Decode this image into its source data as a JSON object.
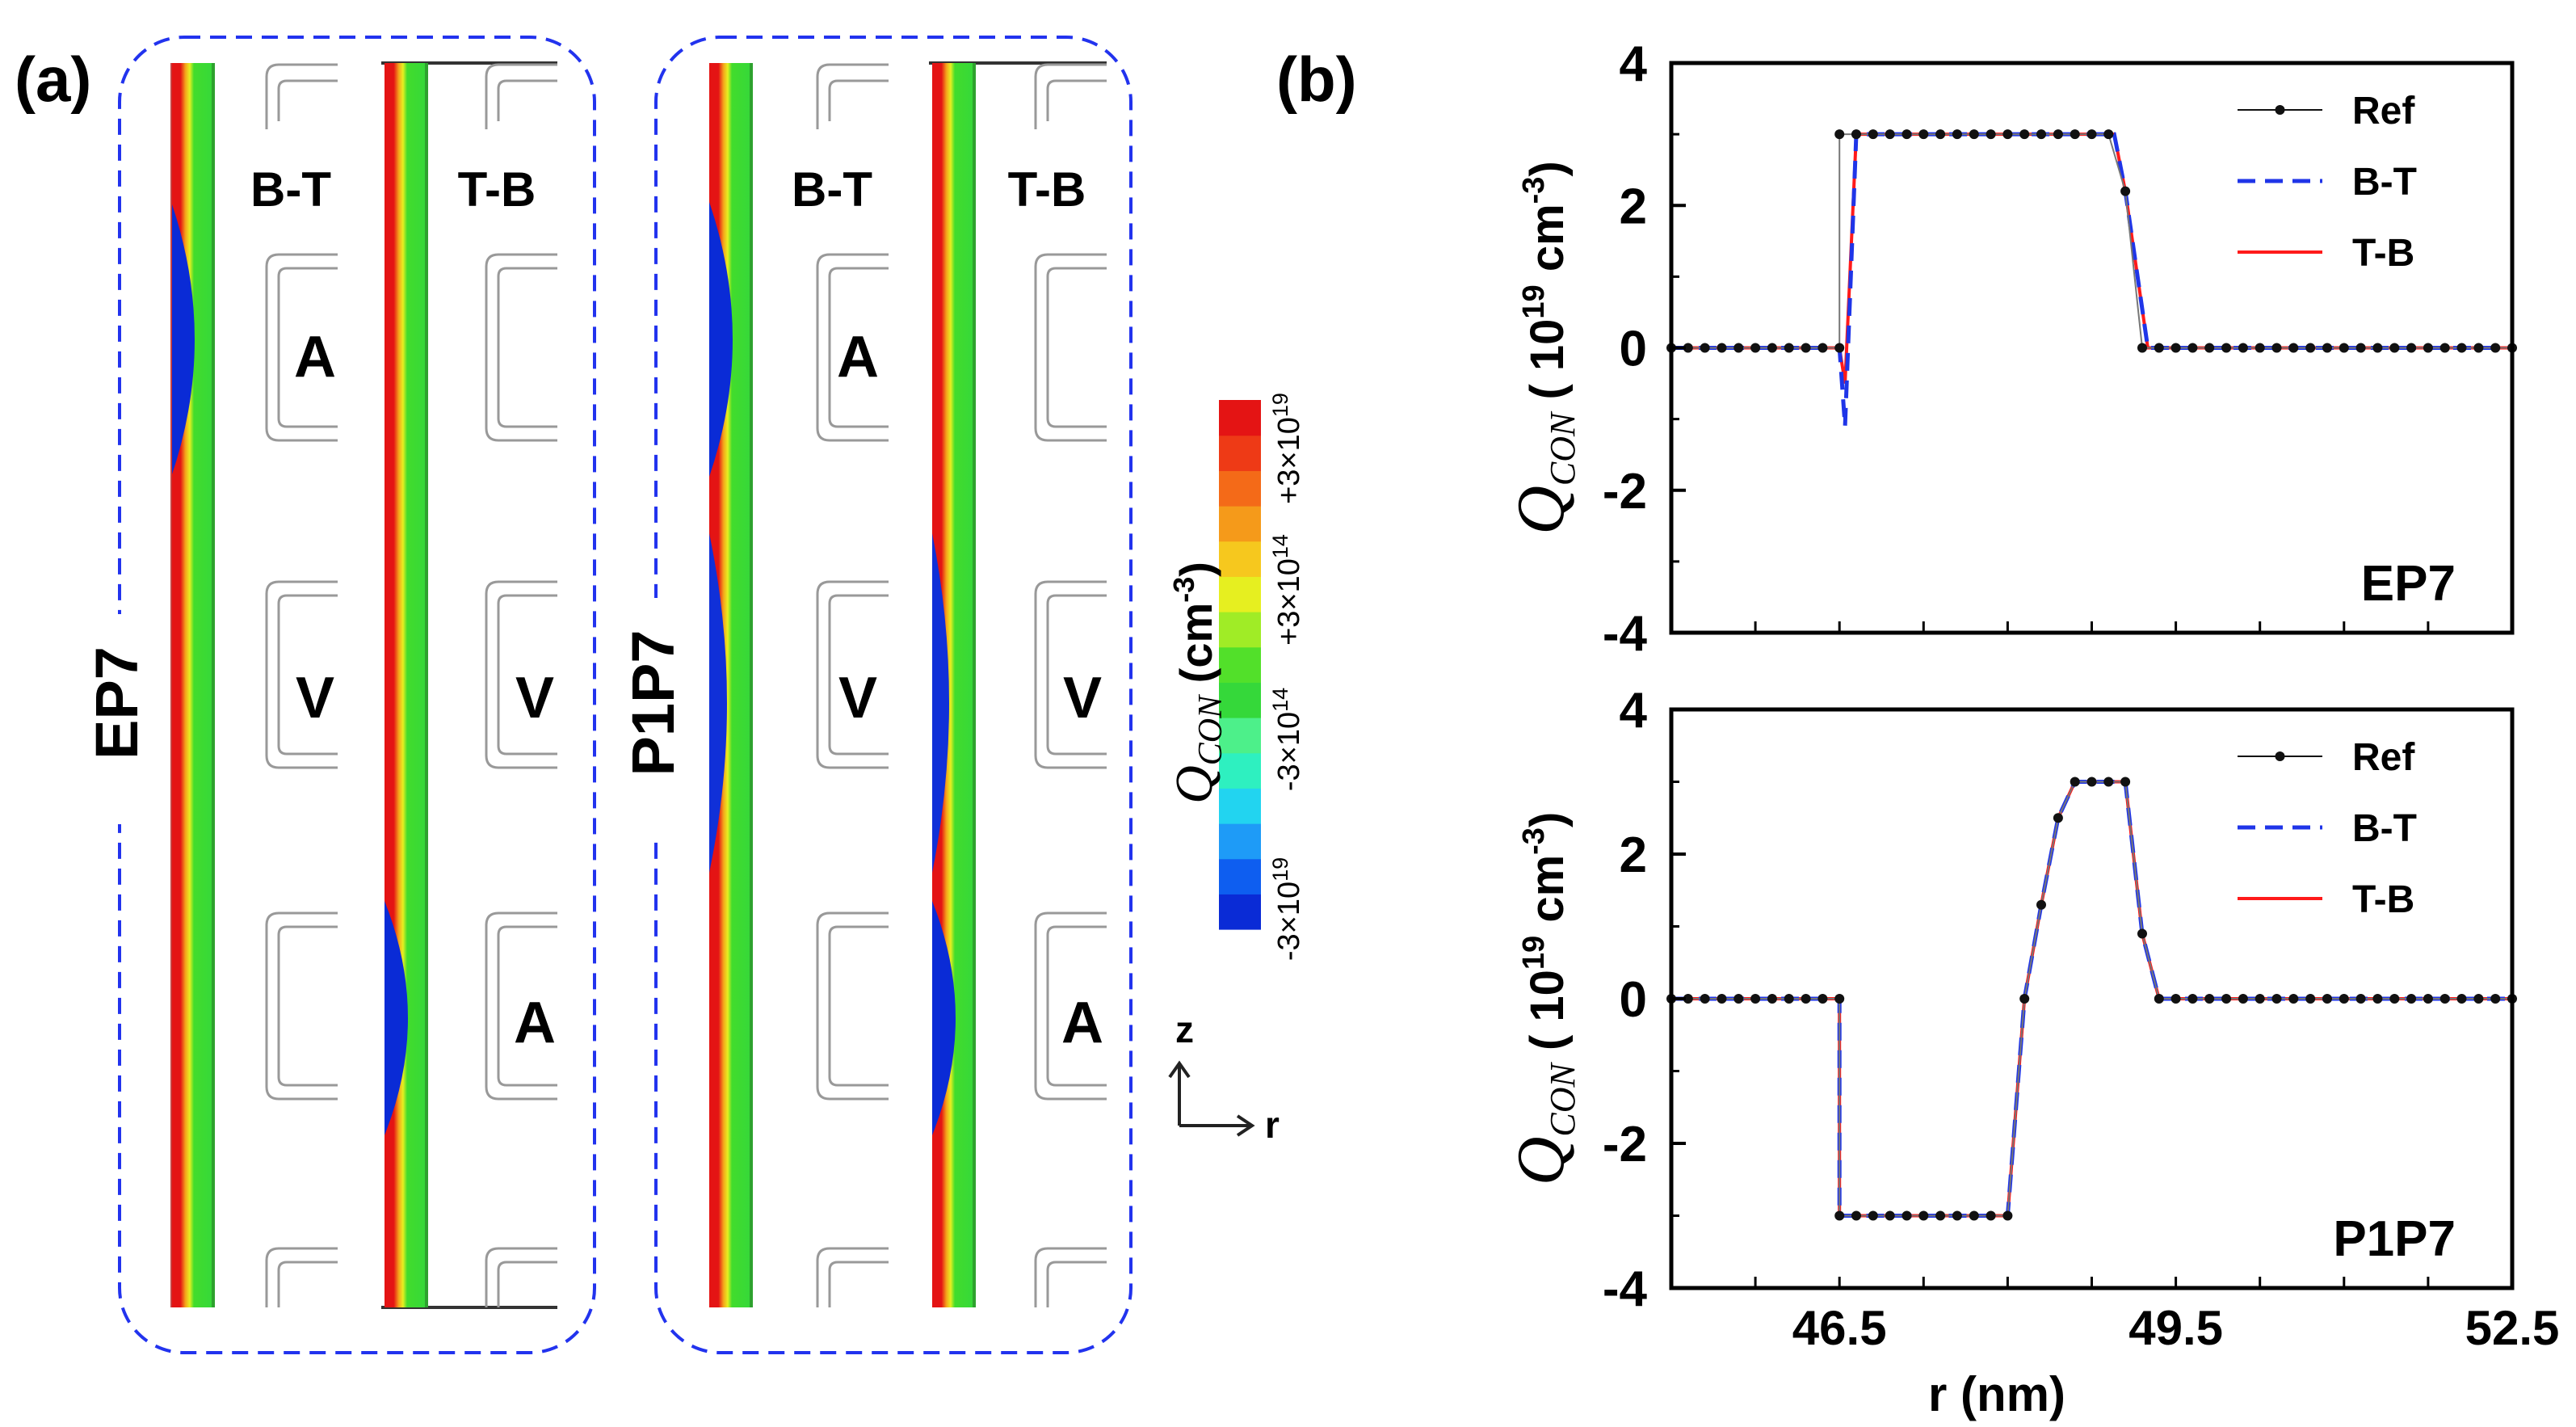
{
  "panel_a": {
    "label": "(a)",
    "groups": [
      {
        "name": "EP7",
        "columns": [
          {
            "title": "B-T",
            "gate_letters": [
              "A",
              "V"
            ]
          },
          {
            "title": "T-B",
            "gate_letters": [
              "V",
              "A"
            ]
          }
        ]
      },
      {
        "name": "P1P7",
        "columns": [
          {
            "title": "B-T",
            "gate_letters": [
              "A",
              "V"
            ]
          },
          {
            "title": "T-B",
            "gate_letters": [
              "V",
              "A"
            ]
          }
        ]
      }
    ],
    "colorbar": {
      "title_main": "Q",
      "title_sub": "CON",
      "title_units": " (cm",
      "title_exp": "-3",
      "title_close": ")",
      "tick_labels": [
        {
          "mant": "-3×10",
          "exp": "19"
        },
        {
          "mant": "-3×10",
          "exp": "14"
        },
        {
          "mant": "+3×10",
          "exp": "14"
        },
        {
          "mant": "+3×10",
          "exp": "19"
        }
      ],
      "colors": [
        "#0a2bd6",
        "#0e5ef0",
        "#1e9bf7",
        "#22d4f0",
        "#2ef0c0",
        "#4df08a",
        "#35d83a",
        "#52e02a",
        "#a0ec26",
        "#e6ef20",
        "#f6c81e",
        "#f59a1a",
        "#f46a18",
        "#ee3a16",
        "#e41414"
      ]
    },
    "axes_icon": {
      "z": "z",
      "r": "r"
    }
  },
  "panel_b": {
    "label": "(b)",
    "ylabel_main": "Q",
    "ylabel_sub": "CON",
    "ylabel_units_pre": " ( 10",
    "ylabel_units_exp1": "19",
    "ylabel_units_mid": "  cm",
    "ylabel_units_exp2": "-3",
    "ylabel_units_post": ")",
    "xlabel": "r (nm)"
  },
  "chart_data": [
    {
      "type": "line",
      "title": "EP7",
      "xlabel": "r (nm)",
      "ylabel": "Q_CON ( 10^19 cm^-3)",
      "xlim": [
        45.0,
        52.5
      ],
      "ylim": [
        -4,
        4
      ],
      "x_ticks": [
        46.5,
        49.5,
        52.5
      ],
      "y_ticks": [
        4,
        2,
        0,
        -2,
        -4
      ],
      "legend": "top-right",
      "grid": false,
      "series": [
        {
          "name": "Ref",
          "color": "#000000",
          "style": "solid-markers",
          "x": [
            45.0,
            45.15,
            45.3,
            45.45,
            45.6,
            45.75,
            45.9,
            46.05,
            46.2,
            46.35,
            46.5,
            46.5,
            46.65,
            46.8,
            46.95,
            47.1,
            47.25,
            47.4,
            47.55,
            47.7,
            47.85,
            48.0,
            48.15,
            48.3,
            48.45,
            48.6,
            48.75,
            48.9,
            49.05,
            49.2,
            49.35,
            49.5,
            49.65,
            49.8,
            49.95,
            50.1,
            50.25,
            50.4,
            50.55,
            50.7,
            50.85,
            51.0,
            51.15,
            51.3,
            51.45,
            51.6,
            51.75,
            51.9,
            52.05,
            52.2,
            52.35,
            52.5
          ],
          "y": [
            0,
            0,
            0,
            0,
            0,
            0,
            0,
            0,
            0,
            0,
            0,
            3,
            3,
            3,
            3,
            3,
            3,
            3,
            3,
            3,
            3,
            3,
            3,
            3,
            3,
            3,
            3,
            3,
            2.2,
            0,
            0,
            0,
            0,
            0,
            0,
            0,
            0,
            0,
            0,
            0,
            0,
            0,
            0,
            0,
            0,
            0,
            0,
            0,
            0,
            0,
            0,
            0
          ]
        },
        {
          "name": "B-T",
          "color": "#1f35e8",
          "style": "dashed",
          "x": [
            45.0,
            46.5,
            46.55,
            46.65,
            48.95,
            49.05,
            49.25,
            52.5
          ],
          "y": [
            0,
            0,
            -1.1,
            3,
            3,
            2.2,
            0,
            0
          ]
        },
        {
          "name": "T-B",
          "color": "#ff1a1a",
          "style": "solid",
          "x": [
            45.0,
            46.5,
            46.55,
            46.65,
            48.95,
            49.05,
            49.25,
            52.5
          ],
          "y": [
            0,
            0,
            -0.5,
            3,
            3,
            2.2,
            0,
            0
          ]
        }
      ]
    },
    {
      "type": "line",
      "title": "P1P7",
      "xlabel": "r (nm)",
      "ylabel": "Q_CON ( 10^19 cm^-3)",
      "xlim": [
        45.0,
        52.5
      ],
      "ylim": [
        -4,
        4
      ],
      "x_ticks": [
        46.5,
        49.5,
        52.5
      ],
      "y_ticks": [
        4,
        2,
        0,
        -2,
        -4
      ],
      "legend": "top-right",
      "grid": false,
      "series": [
        {
          "name": "Ref",
          "color": "#000000",
          "style": "solid-markers",
          "x": [
            45.0,
            45.15,
            45.3,
            45.45,
            45.6,
            45.75,
            45.9,
            46.05,
            46.2,
            46.35,
            46.5,
            46.5,
            46.65,
            46.8,
            46.95,
            47.1,
            47.25,
            47.4,
            47.55,
            47.7,
            47.85,
            48.0,
            48.15,
            48.3,
            48.45,
            48.6,
            48.75,
            48.9,
            49.05,
            49.2,
            49.35,
            49.5,
            49.65,
            49.8,
            49.95,
            50.1,
            50.25,
            50.4,
            50.55,
            50.7,
            50.85,
            51.0,
            51.15,
            51.3,
            51.45,
            51.6,
            51.75,
            51.9,
            52.05,
            52.2,
            52.35,
            52.5
          ],
          "y": [
            0,
            0,
            0,
            0,
            0,
            0,
            0,
            0,
            0,
            0,
            0,
            -3,
            -3,
            -3,
            -3,
            -3,
            -3,
            -3,
            -3,
            -3,
            -3,
            -3,
            0,
            1.3,
            2.5,
            3,
            3,
            3,
            3,
            0.9,
            0,
            0,
            0,
            0,
            0,
            0,
            0,
            0,
            0,
            0,
            0,
            0,
            0,
            0,
            0,
            0,
            0,
            0,
            0,
            0,
            0,
            0
          ]
        },
        {
          "name": "B-T",
          "color": "#1f35e8",
          "style": "dashed",
          "x": [
            45.0,
            46.5,
            46.5,
            48.0,
            48.15,
            48.3,
            48.45,
            48.6,
            49.05,
            49.2,
            49.35,
            52.5
          ],
          "y": [
            0,
            0,
            -3,
            -3,
            0,
            1.3,
            2.5,
            3,
            3,
            0.9,
            0,
            0
          ]
        },
        {
          "name": "T-B",
          "color": "#ff1a1a",
          "style": "solid",
          "x": [
            45.0,
            46.5,
            46.5,
            48.0,
            48.15,
            48.3,
            48.45,
            48.6,
            49.05,
            49.2,
            49.35,
            52.5
          ],
          "y": [
            0,
            0,
            -3,
            -3,
            0,
            1.3,
            2.5,
            3,
            3,
            0.9,
            0,
            0
          ]
        }
      ]
    }
  ]
}
